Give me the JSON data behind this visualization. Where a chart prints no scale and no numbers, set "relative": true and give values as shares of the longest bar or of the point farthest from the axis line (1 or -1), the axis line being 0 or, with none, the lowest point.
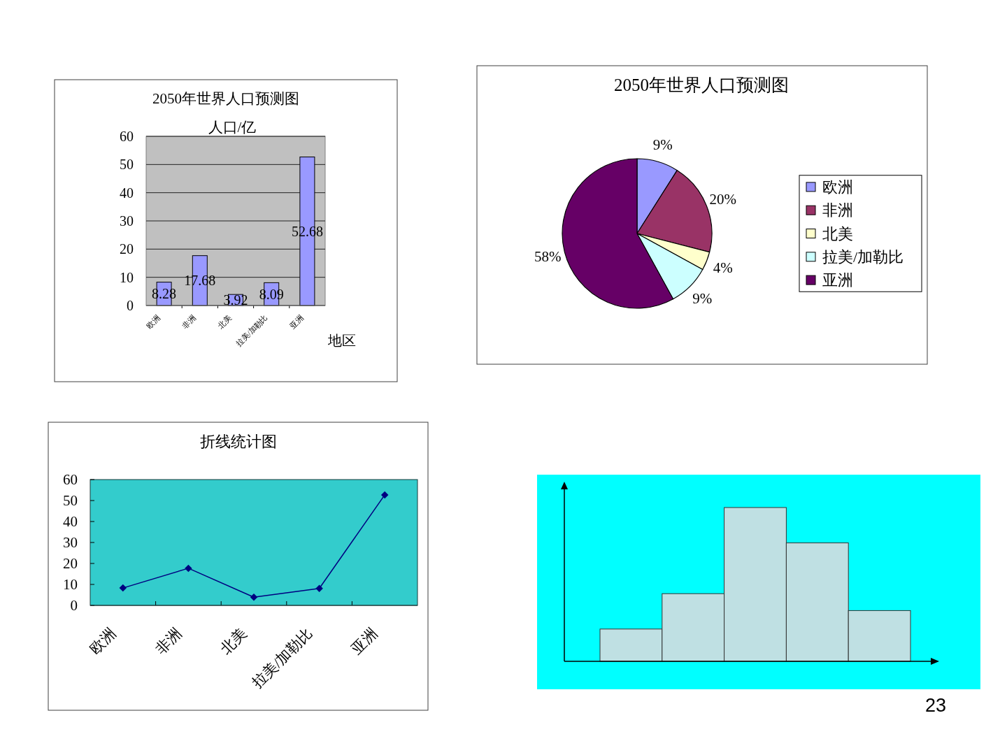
{
  "chart_data": [
    {
      "type": "bar",
      "title": "2050年世界人口预测图",
      "ylabel": "人口/亿",
      "xlabel": "地区",
      "categories": [
        "欧洲",
        "非洲",
        "北美",
        "拉美/加勒比",
        "亚洲"
      ],
      "values": [
        8.28,
        17.68,
        3.92,
        8.09,
        52.68
      ],
      "color": "#9999ff",
      "ylim": [
        0,
        60
      ],
      "yticks": [
        0,
        10,
        20,
        30,
        40,
        50,
        60
      ],
      "grid": "y",
      "data_labels": true
    },
    {
      "type": "pie",
      "title": "2050年世界人口预测图",
      "categories": [
        "欧洲",
        "非洲",
        "北美",
        "拉美/加勒比",
        "亚洲"
      ],
      "values": [
        9,
        20,
        4,
        9,
        58
      ],
      "colors": [
        "#9999ff",
        "#993366",
        "#ffffcc",
        "#ccffff",
        "#660066"
      ],
      "value_labels": [
        "9%",
        "20%",
        "4%",
        "9%",
        "58%"
      ],
      "legend": "right"
    },
    {
      "type": "line",
      "title": "折线统计图",
      "categories": [
        "欧洲",
        "非洲",
        "北美",
        "拉美/加勒比",
        "亚洲"
      ],
      "values": [
        8.3,
        17.7,
        3.9,
        8.1,
        52.7
      ],
      "color": "#000080",
      "marker": "diamond",
      "line_style": "solid",
      "ylim": [
        0,
        60
      ],
      "yticks": [
        0,
        10,
        20,
        30,
        40,
        50,
        60
      ]
    },
    {
      "type": "bar",
      "categories": [
        null,
        null,
        null,
        null,
        null
      ],
      "values": [
        0.21,
        0.44,
        1,
        0.77,
        0.33
      ],
      "color": "#bfe0e3",
      "relative": true,
      "annotations": [
        "23"
      ]
    }
  ]
}
